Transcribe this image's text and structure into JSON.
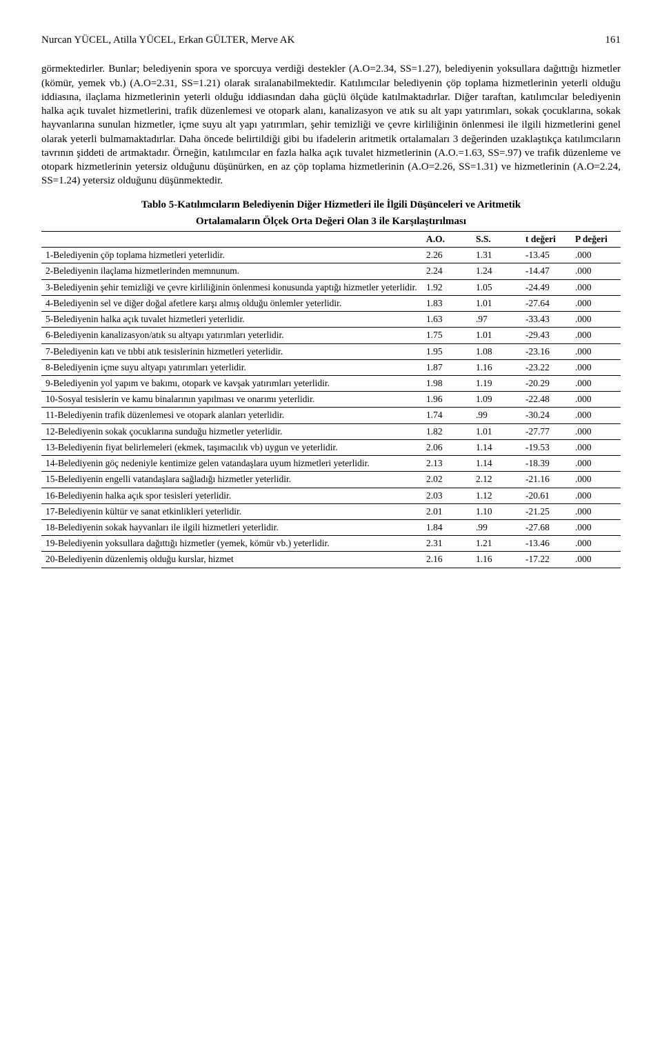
{
  "header": {
    "authors": "Nurcan YÜCEL, Atilla YÜCEL, Erkan GÜLTER, Merve AK",
    "page": "161"
  },
  "paragraph": "görmektedirler. Bunlar; belediyenin spora ve sporcuya verdiği destekler (A.O=2.34, SS=1.27), belediyenin yoksullara dağıttığı hizmetler (kömür, yemek vb.) (A.O=2.31, SS=1.21) olarak sıralanabilmektedir. Katılımcılar belediyenin çöp toplama hizmetlerinin yeterli olduğu iddiasına, ilaçlama hizmetlerinin yeterli olduğu iddiasından daha güçlü ölçüde katılmaktadırlar. Diğer taraftan, katılımcılar belediyenin halka açık tuvalet hizmetlerini, trafik düzenlemesi ve otopark alanı, kanalizasyon ve atık su alt yapı yatırımları, sokak çocuklarına, sokak hayvanlarına sunulan hizmetler, içme suyu alt yapı yatırımları, şehir temizliği ve çevre kirliliğinin önlenmesi ile ilgili hizmetlerini genel olarak yeterli bulmamaktadırlar. Daha öncede belirtildiği gibi bu ifadelerin aritmetik ortalamaları 3 değerinden uzaklaştıkça katılımcıların tavrının şiddeti de artmaktadır. Örneğin, katılımcılar en fazla halka açık tuvalet hizmetlerinin (A.O.=1.63, SS=.97) ve trafik düzenleme ve otopark hizmetlerinin yetersiz olduğunu düşünürken, en az çöp toplama hizmetlerinin (A.O=2.26, SS=1.31) ve hizmetlerinin (A.O=2.24, SS=1.24) yetersiz olduğunu düşünmektedir.",
  "table": {
    "title_line1": "Tablo 5-Katılımcıların Belediyenin Diğer Hizmetleri ile İlgili Düşünceleri ve Aritmetik",
    "title_line2": "Ortalamaların Ölçek Orta Değeri Olan 3 ile Karşılaştırılması",
    "columns": [
      "",
      "A.O.",
      "S.S.",
      "t değeri",
      "P değeri"
    ],
    "rows": [
      {
        "label": "1-Belediyenin çöp toplama hizmetleri yeterlidir.",
        "ao": "2.26",
        "ss": "1.31",
        "t": "-13.45",
        "p": ".000"
      },
      {
        "label": "2-Belediyenin ilaçlama hizmetlerinden memnunum.",
        "ao": "2.24",
        "ss": "1.24",
        "t": "-14.47",
        "p": ".000"
      },
      {
        "label": "3-Belediyenin şehir temizliği ve çevre kirliliğinin önlenmesi konusunda yaptığı hizmetler yeterlidir.",
        "ao": "1.92",
        "ss": "1.05",
        "t": "-24.49",
        "p": ".000"
      },
      {
        "label": "4-Belediyenin sel ve diğer doğal afetlere karşı almış olduğu önlemler yeterlidir.",
        "ao": "1.83",
        "ss": "1.01",
        "t": "-27.64",
        "p": ".000"
      },
      {
        "label": "5-Belediyenin halka açık tuvalet hizmetleri yeterlidir.",
        "ao": "1.63",
        "ss": ".97",
        "t": "-33.43",
        "p": ".000"
      },
      {
        "label": "6-Belediyenin kanalizasyon/atık su altyapı yatırımları yeterlidir.",
        "ao": "1.75",
        "ss": "1.01",
        "t": "-29.43",
        "p": ".000"
      },
      {
        "label": "7-Belediyenin katı ve tıbbi atık tesislerinin hizmetleri yeterlidir.",
        "ao": "1.95",
        "ss": "1.08",
        "t": "-23.16",
        "p": ".000"
      },
      {
        "label": "8-Belediyenin içme suyu altyapı yatırımları yeterlidir.",
        "ao": "1.87",
        "ss": "1.16",
        "t": "-23.22",
        "p": ".000"
      },
      {
        "label": "9-Belediyenin yol yapım ve bakımı, otopark ve kavşak yatırımları yeterlidir.",
        "ao": "1.98",
        "ss": "1.19",
        "t": "-20.29",
        "p": ".000"
      },
      {
        "label": "10-Sosyal tesislerin ve kamu binalarının yapılması ve onarımı yeterlidir.",
        "ao": "1.96",
        "ss": "1.09",
        "t": "-22.48",
        "p": ".000"
      },
      {
        "label": "11-Belediyenin trafik düzenlemesi ve otopark alanları yeterlidir.",
        "ao": "1.74",
        "ss": ".99",
        "t": "-30.24",
        "p": ".000"
      },
      {
        "label": "12-Belediyenin sokak çocuklarına sunduğu hizmetler yeterlidir.",
        "ao": "1.82",
        "ss": "1.01",
        "t": "-27.77",
        "p": ".000"
      },
      {
        "label": "13-Belediyenin fiyat belirlemeleri (ekmek, taşımacılık vb) uygun ve yeterlidir.",
        "ao": "2.06",
        "ss": "1.14",
        "t": "-19.53",
        "p": ".000"
      },
      {
        "label": "14-Belediyenin göç nedeniyle kentimize gelen vatandaşlara uyum hizmetleri yeterlidir.",
        "ao": "2.13",
        "ss": "1.14",
        "t": "-18.39",
        "p": ".000"
      },
      {
        "label": "15-Belediyenin engelli vatandaşlara sağladığı hizmetler yeterlidir.",
        "ao": "2.02",
        "ss": "2.12",
        "t": "-21.16",
        "p": ".000"
      },
      {
        "label": "16-Belediyenin halka açık spor tesisleri yeterlidir.",
        "ao": "2.03",
        "ss": "1.12",
        "t": "-20.61",
        "p": ".000"
      },
      {
        "label": "17-Belediyenin kültür ve sanat etkinlikleri yeterlidir.",
        "ao": "2.01",
        "ss": "1.10",
        "t": "-21.25",
        "p": ".000"
      },
      {
        "label": "18-Belediyenin sokak hayvanları ile ilgili hizmetleri yeterlidir.",
        "ao": "1.84",
        "ss": ".99",
        "t": "-27.68",
        "p": ".000"
      },
      {
        "label": "19-Belediyenin yoksullara dağıttığı hizmetler (yemek, kömür vb.) yeterlidir.",
        "ao": "2.31",
        "ss": "1.21",
        "t": "-13.46",
        "p": ".000"
      },
      {
        "label": "20-Belediyenin düzenlemiş olduğu kurslar, hizmet",
        "ao": "2.16",
        "ss": "1.16",
        "t": "-17.22",
        "p": ".000"
      }
    ]
  }
}
